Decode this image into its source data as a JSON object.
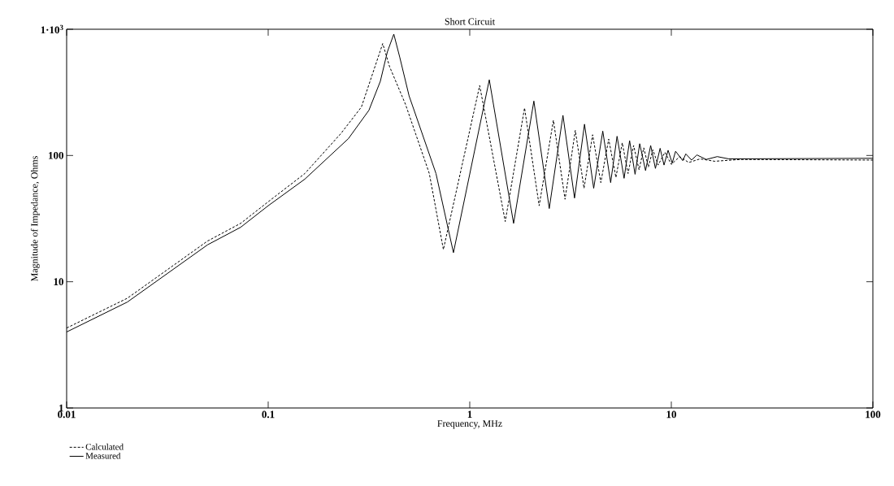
{
  "chart_data": {
    "type": "line",
    "title": "Short Circuit",
    "xlabel": "Frequency, MHz",
    "ylabel": "Magnitude of Impedance, Ohms",
    "log": "xy",
    "xlim": [
      0.01,
      100
    ],
    "ylim": [
      1,
      1000
    ],
    "xticks": [
      0.01,
      0.1,
      1,
      10,
      100
    ],
    "yticks": [
      1,
      10,
      100,
      {
        "value": 1000,
        "label": "1·10$^{3}$"
      }
    ],
    "grid": false,
    "legend": "bottom left",
    "marker": "none",
    "series": [
      {
        "name": "Calculated",
        "color": "#000000",
        "line_style": "dashed",
        "x": [
          0.01,
          0.02,
          0.05,
          0.073,
          0.1,
          0.152,
          0.23,
          0.29,
          0.37,
          0.4,
          0.48,
          0.63,
          0.74,
          1.12,
          1.5,
          1.87,
          2.21,
          2.6,
          2.97,
          3.34,
          3.69,
          4.07,
          4.47,
          4.89,
          5.31,
          5.71,
          6.1,
          6.5,
          6.92,
          7.3,
          7.7,
          8.1,
          8.6,
          9.3,
          10,
          11,
          12.2,
          13.9,
          16.4,
          22,
          100
        ],
        "values": [
          4.3,
          7.4,
          21,
          29,
          43,
          72,
          150,
          242,
          770,
          506,
          254,
          72,
          18,
          358,
          30,
          238,
          40,
          190,
          45,
          158,
          55,
          146,
          61,
          135,
          67,
          126,
          72,
          120,
          77,
          115,
          81,
          111,
          84,
          106,
          85,
          98,
          88,
          94,
          90,
          93,
          92
        ]
      },
      {
        "name": "Measured",
        "color": "#000000",
        "line_style": "solid",
        "x": [
          0.01,
          0.02,
          0.05,
          0.073,
          0.1,
          0.152,
          0.25,
          0.316,
          0.36,
          0.39,
          0.42,
          0.45,
          0.5,
          0.68,
          0.83,
          1.25,
          1.65,
          2.08,
          2.48,
          2.9,
          3.31,
          3.71,
          4.12,
          4.57,
          5.0,
          5.38,
          5.83,
          6.21,
          6.61,
          6.97,
          7.45,
          7.9,
          8.34,
          8.8,
          9.2,
          9.64,
          10.1,
          10.5,
          11.4,
          11.8,
          12.6,
          13.4,
          14.9,
          16.9,
          19.3,
          100
        ],
        "values": [
          4.0,
          6.9,
          19.6,
          27,
          40,
          65,
          136,
          228,
          387,
          660,
          915,
          596,
          297,
          72,
          17,
          398,
          29,
          270,
          38,
          208,
          46,
          177,
          55,
          156,
          61,
          142,
          66,
          131,
          71,
          124,
          76,
          120,
          79,
          114,
          84,
          110,
          87,
          108,
          91,
          103,
          92,
          101,
          93,
          98,
          94,
          95
        ]
      }
    ]
  }
}
